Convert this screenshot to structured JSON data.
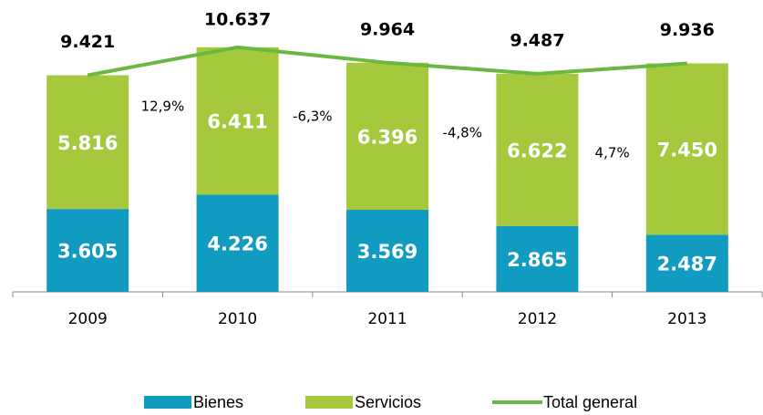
{
  "chart_data": {
    "type": "stacked-bar-line",
    "categories": [
      "2009",
      "2010",
      "2011",
      "2012",
      "2013"
    ],
    "series": [
      {
        "name": "Bienes",
        "color": "#129bc1",
        "values": [
          3605,
          4226,
          3569,
          2865,
          2487
        ],
        "value_labels": [
          "3.605",
          "4.226",
          "3.569",
          "2.865",
          "2.487"
        ]
      },
      {
        "name": "Servicios",
        "color": "#a6c83d",
        "values": [
          5816,
          6411,
          6396,
          6622,
          7450
        ],
        "value_labels": [
          "5.816",
          "6.411",
          "6.396",
          "6.622",
          "7.450"
        ]
      },
      {
        "name": "Total general",
        "type": "line",
        "color": "#6ab843",
        "values": [
          9421,
          10637,
          9964,
          9487,
          9936
        ],
        "value_labels": [
          "9.421",
          "10.637",
          "9.964",
          "9.487",
          "9.936"
        ]
      }
    ],
    "annotations": [
      "12,9%",
      "-6,3%",
      "-4,8%",
      "4,7%"
    ],
    "ylim": [
      0,
      11900
    ]
  }
}
